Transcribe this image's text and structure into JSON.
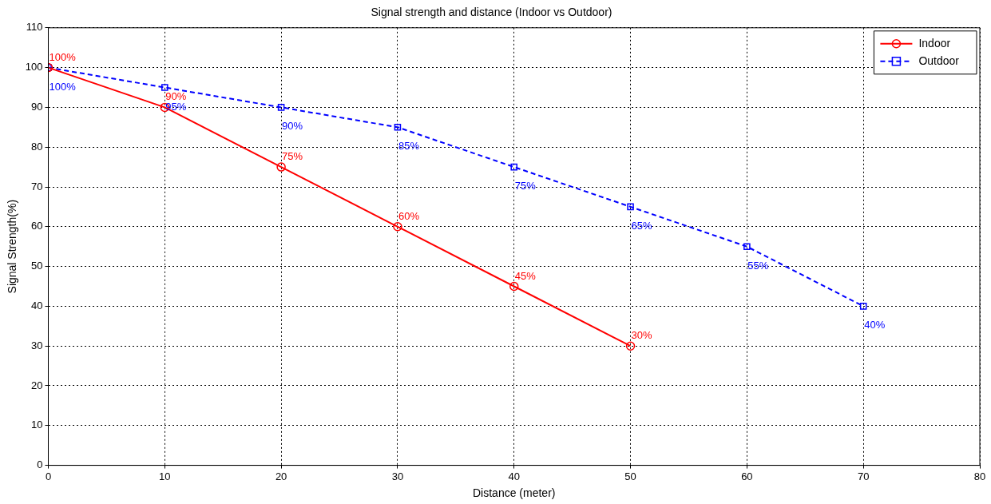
{
  "chart_data": {
    "type": "line",
    "title": "Signal strength and distance (Indoor vs Outdoor)",
    "xlabel": "Distance (meter)",
    "ylabel": "Signal Strength(%)",
    "xlim": [
      0,
      80
    ],
    "xticks": [
      0,
      10,
      20,
      30,
      40,
      50,
      60,
      70,
      80
    ],
    "ylim": [
      0,
      110
    ],
    "yticks": [
      0,
      10,
      20,
      30,
      40,
      50,
      60,
      70,
      80,
      90,
      100,
      110
    ],
    "grid": true,
    "legend": "top right",
    "series": [
      {
        "name": "Indoor",
        "color": "#ff0000",
        "marker": "circle",
        "line_style": "solid",
        "x": [
          0,
          10,
          20,
          30,
          40,
          50
        ],
        "values": [
          100,
          90,
          75,
          60,
          45,
          30
        ],
        "value_labels": [
          "100%",
          "90%",
          "75%",
          "60%",
          "45%",
          "30%"
        ]
      },
      {
        "name": "Outdoor",
        "color": "#0000ff",
        "marker": "square",
        "line_style": "dashed",
        "x": [
          0,
          10,
          20,
          30,
          40,
          50,
          60,
          70
        ],
        "values": [
          100,
          95,
          90,
          85,
          75,
          65,
          55,
          40
        ],
        "value_labels": [
          "100%",
          "95%",
          "90%",
          "85%",
          "75%",
          "65%",
          "55%",
          "40%"
        ]
      }
    ]
  }
}
